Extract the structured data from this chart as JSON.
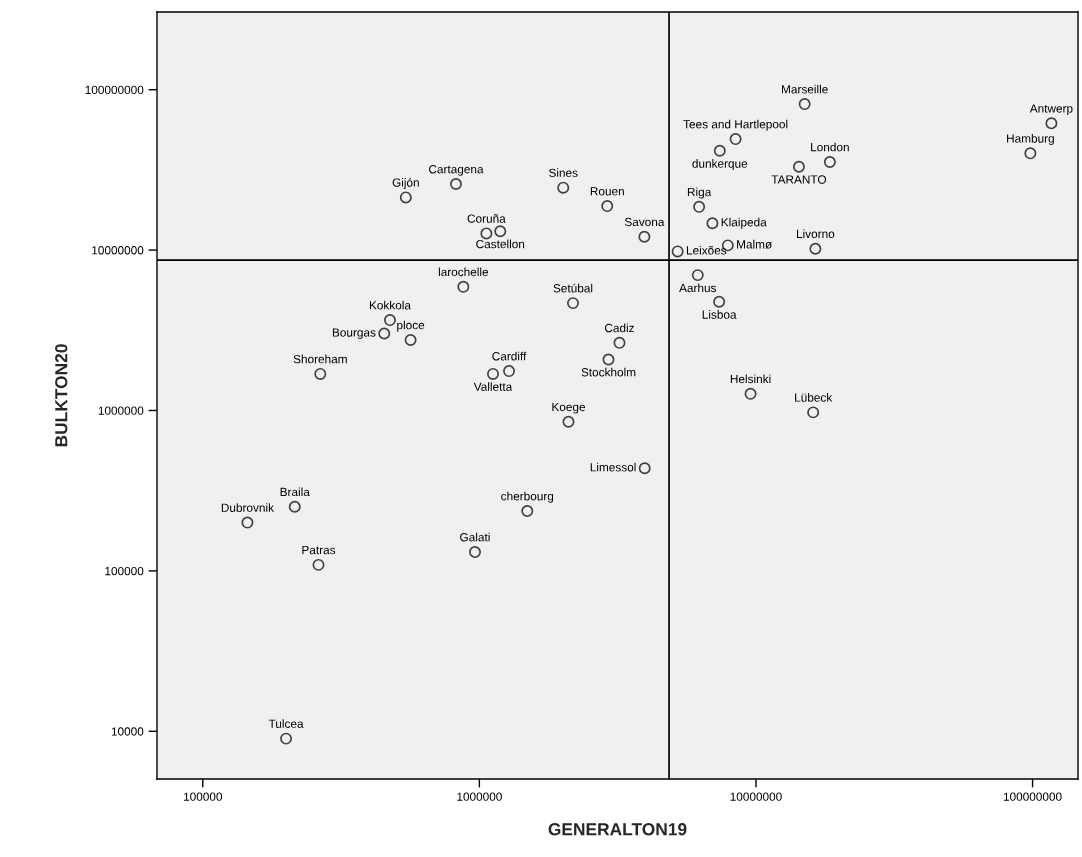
{
  "chart_data": {
    "type": "scatter",
    "xlabel": "GENERALTON19",
    "ylabel": "BULKTON20",
    "log": "xy",
    "grid": false,
    "marker": "circle",
    "xlim": [
      68300,
      146000000
    ],
    "ylim": [
      5040,
      305000000
    ],
    "xticks": [
      100000,
      1000000,
      10000000,
      100000000
    ],
    "yticks": [
      10000,
      100000,
      1000000,
      10000000,
      100000000
    ],
    "ref_lines": [
      {
        "axis": "x",
        "value": 4850000,
        "color": "#000000"
      },
      {
        "axis": "y",
        "value": 8660000,
        "color": "#000000"
      }
    ],
    "series": [
      {
        "color": "#404040",
        "x": [
          542000,
          823000,
          2010000,
          2900000,
          1060000,
          1190000,
          3950000,
          875000,
          475000,
          453000,
          564000,
          266000,
          1280000,
          1120000,
          2100000,
          2180000,
          15000000,
          117000000,
          8440000,
          7400000,
          14300000,
          18500000,
          98200000,
          6230000,
          6960000,
          7910000,
          16400000,
          5210000,
          6160000,
          7360000,
          3210000,
          2930000,
          9560000,
          16100000,
          3960000,
          215000,
          145000,
          262000,
          1490000,
          964000,
          200000
        ],
        "values": [
          21300000,
          25800000,
          24500000,
          18800000,
          12700000,
          13100000,
          12100000,
          5900000,
          3660000,
          3020000,
          2750000,
          1690000,
          1760000,
          1690000,
          850000,
          4670000,
          81300000,
          61700000,
          49200000,
          41600000,
          33100000,
          35400000,
          40100000,
          18600000,
          14700000,
          10700000,
          10200000,
          9810000,
          6980000,
          4760000,
          2640000,
          2080000,
          1270000,
          973000,
          436000,
          251000,
          200000,
          109000,
          236000,
          131000,
          9000
        ]
      }
    ],
    "annotations": [
      {
        "text": "Gijón",
        "x": 542000,
        "y": 21300000
      },
      {
        "text": "Cartagena",
        "x": 823000,
        "y": 25800000
      },
      {
        "text": "Sines",
        "x": 2010000,
        "y": 24500000
      },
      {
        "text": "Rouen",
        "x": 2900000,
        "y": 18800000
      },
      {
        "text": "Coruña",
        "x": 1060000,
        "y": 12700000
      },
      {
        "text": "Castellon",
        "x": 1190000,
        "y": 13100000
      },
      {
        "text": "Savona",
        "x": 3950000,
        "y": 12100000
      },
      {
        "text": "larochelle",
        "x": 875000,
        "y": 5900000
      },
      {
        "text": "Kokkola",
        "x": 475000,
        "y": 3660000
      },
      {
        "text": "Bourgas",
        "x": 453000,
        "y": 3020000
      },
      {
        "text": "ploce",
        "x": 564000,
        "y": 2750000
      },
      {
        "text": "Shoreham",
        "x": 266000,
        "y": 1690000
      },
      {
        "text": "Cardiff",
        "x": 1280000,
        "y": 1760000
      },
      {
        "text": "Valletta",
        "x": 1120000,
        "y": 1690000
      },
      {
        "text": "Koege",
        "x": 2100000,
        "y": 850000
      },
      {
        "text": "Setúbal",
        "x": 2180000,
        "y": 4670000
      },
      {
        "text": "Marseille",
        "x": 15000000,
        "y": 81300000
      },
      {
        "text": "Antwerp",
        "x": 117000000,
        "y": 61700000
      },
      {
        "text": "Tees and Hartlepool",
        "x": 8440000,
        "y": 49200000
      },
      {
        "text": "dunkerque",
        "x": 7400000,
        "y": 41600000
      },
      {
        "text": "TARANTO",
        "x": 14300000,
        "y": 33100000
      },
      {
        "text": "London",
        "x": 18500000,
        "y": 35400000
      },
      {
        "text": "Hamburg",
        "x": 98200000,
        "y": 40100000
      },
      {
        "text": "Riga",
        "x": 6230000,
        "y": 18600000
      },
      {
        "text": "Klaipeda",
        "x": 6960000,
        "y": 14700000
      },
      {
        "text": "Malmø",
        "x": 7910000,
        "y": 10700000
      },
      {
        "text": "Livorno",
        "x": 16400000,
        "y": 10200000
      },
      {
        "text": "Leixões",
        "x": 5210000,
        "y": 9810000
      },
      {
        "text": "Aarhus",
        "x": 6160000,
        "y": 6980000
      },
      {
        "text": "Lisboa",
        "x": 7360000,
        "y": 4760000
      },
      {
        "text": "Cadiz",
        "x": 3210000,
        "y": 2640000
      },
      {
        "text": "Stockholm",
        "x": 2930000,
        "y": 2080000
      },
      {
        "text": "Helsinki",
        "x": 9560000,
        "y": 1270000
      },
      {
        "text": "Lübeck",
        "x": 16100000,
        "y": 973000
      },
      {
        "text": "Limessol",
        "x": 3960000,
        "y": 436000
      },
      {
        "text": "Braila",
        "x": 215000,
        "y": 251000
      },
      {
        "text": "Dubrovnik",
        "x": 145000,
        "y": 200000
      },
      {
        "text": "Patras",
        "x": 262000,
        "y": 109000
      },
      {
        "text": "cherbourg",
        "x": 1490000,
        "y": 236000
      },
      {
        "text": "Galati",
        "x": 964000,
        "y": 131000
      },
      {
        "text": "Tulcea",
        "x": 200000,
        "y": 9000
      }
    ]
  }
}
